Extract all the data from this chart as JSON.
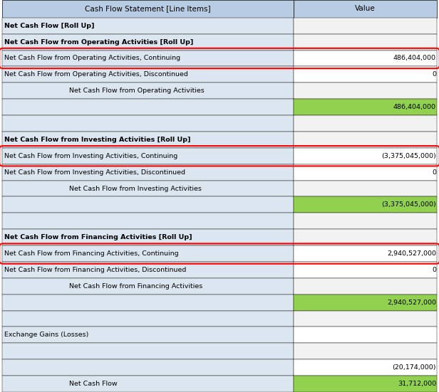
{
  "col1_header": "Cash Flow Statement [Line Items]",
  "col2_header": "Value",
  "rows": [
    {
      "label": "Net Cash Flow [Roll Up]",
      "value": "",
      "style": "bold",
      "indent": 0,
      "bg": "#dce6f1",
      "val_bg": "#f2f2f2",
      "circle": false
    },
    {
      "label": "Net Cash Flow from Operating Activities [Roll Up]",
      "value": "",
      "style": "bold",
      "indent": 0,
      "bg": "#dce6f1",
      "val_bg": "#f2f2f2",
      "circle": false
    },
    {
      "label": "Net Cash Flow from Operating Activities, Continuing",
      "value": "486,404,000",
      "style": "normal",
      "indent": 0,
      "bg": "#dce6f1",
      "val_bg": "#ffffff",
      "circle": true
    },
    {
      "label": "Net Cash Flow from Operating Activities, Discontinued",
      "value": "0",
      "style": "normal",
      "indent": 0,
      "bg": "#dce6f1",
      "val_bg": "#ffffff",
      "circle": false
    },
    {
      "label": "Net Cash Flow from Operating Activities",
      "value": "",
      "style": "normal",
      "indent": 1,
      "bg": "#dce6f1",
      "val_bg": "#f2f2f2",
      "circle": false
    },
    {
      "label": "",
      "value": "486,404,000",
      "style": "normal",
      "indent": 0,
      "bg": "#dce6f1",
      "val_bg": "#92d050",
      "circle": false
    },
    {
      "label": "",
      "value": "",
      "style": "normal",
      "indent": 0,
      "bg": "#dce6f1",
      "val_bg": "#f2f2f2",
      "circle": false
    },
    {
      "label": "Net Cash Flow from Investing Activities [Roll Up]",
      "value": "",
      "style": "bold",
      "indent": 0,
      "bg": "#dce6f1",
      "val_bg": "#f2f2f2",
      "circle": false
    },
    {
      "label": "Net Cash Flow from Investing Activities, Continuing",
      "value": "(3,375,045,000)",
      "style": "normal",
      "indent": 0,
      "bg": "#dce6f1",
      "val_bg": "#ffffff",
      "circle": true
    },
    {
      "label": "Net Cash Flow from Investing Activities, Discontinued",
      "value": "0",
      "style": "normal",
      "indent": 0,
      "bg": "#dce6f1",
      "val_bg": "#ffffff",
      "circle": false
    },
    {
      "label": "Net Cash Flow from Investing Activities",
      "value": "",
      "style": "normal",
      "indent": 1,
      "bg": "#dce6f1",
      "val_bg": "#f2f2f2",
      "circle": false
    },
    {
      "label": "",
      "value": "(3,375,045,000)",
      "style": "normal",
      "indent": 0,
      "bg": "#dce6f1",
      "val_bg": "#92d050",
      "circle": false
    },
    {
      "label": "",
      "value": "",
      "style": "normal",
      "indent": 0,
      "bg": "#dce6f1",
      "val_bg": "#f2f2f2",
      "circle": false
    },
    {
      "label": "Net Cash Flow from Financing Activities [Roll Up]",
      "value": "",
      "style": "bold",
      "indent": 0,
      "bg": "#dce6f1",
      "val_bg": "#f2f2f2",
      "circle": false
    },
    {
      "label": "Net Cash Flow from Financing Activities, Continuing",
      "value": "2,940,527,000",
      "style": "normal",
      "indent": 0,
      "bg": "#dce6f1",
      "val_bg": "#ffffff",
      "circle": true
    },
    {
      "label": "Net Cash Flow from Financing Activities, Discontinued",
      "value": "0",
      "style": "normal",
      "indent": 0,
      "bg": "#dce6f1",
      "val_bg": "#ffffff",
      "circle": false
    },
    {
      "label": "Net Cash Flow from Financing Activities",
      "value": "",
      "style": "normal",
      "indent": 1,
      "bg": "#dce6f1",
      "val_bg": "#f2f2f2",
      "circle": false
    },
    {
      "label": "",
      "value": "2,940,527,000",
      "style": "normal",
      "indent": 0,
      "bg": "#dce6f1",
      "val_bg": "#92d050",
      "circle": false
    },
    {
      "label": "",
      "value": "",
      "style": "normal",
      "indent": 0,
      "bg": "#dce6f1",
      "val_bg": "#f2f2f2",
      "circle": false
    },
    {
      "label": "Exchange Gains (Losses)",
      "value": "",
      "style": "normal",
      "indent": 0,
      "bg": "#dce6f1",
      "val_bg": "#ffffff",
      "circle": false
    },
    {
      "label": "",
      "value": "",
      "style": "normal",
      "indent": 0,
      "bg": "#dce6f1",
      "val_bg": "#f2f2f2",
      "circle": false
    },
    {
      "label": "",
      "value": "(20,174,000)",
      "style": "normal",
      "indent": 0,
      "bg": "#dce6f1",
      "val_bg": "#ffffff",
      "circle": false
    },
    {
      "label": "Net Cash Flow",
      "value": "31,712,000",
      "style": "normal",
      "indent": 1,
      "bg": "#dce6f1",
      "val_bg": "#92d050",
      "circle": false
    }
  ],
  "header_bg": "#b8cce4",
  "header_text": "#000000",
  "col_split": 0.67,
  "border_color": "#000000",
  "circle_color": "#ff0000"
}
